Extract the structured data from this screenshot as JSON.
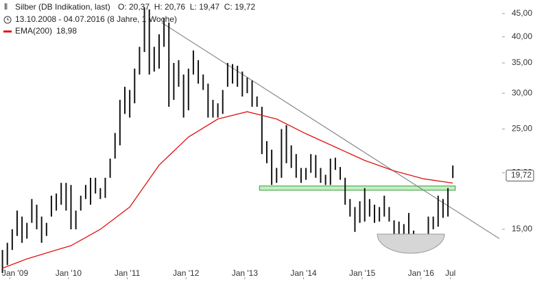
{
  "chart_data": {
    "type": "ohlc",
    "title": "Silber (DB Indikation, last)",
    "ohlc_text": "O: 20,37  H: 20,76  L: 19,47  C: 19,72",
    "range_text": "13.10.2008 - 04.07.2016 (8 Jahre, 1 Woche)",
    "ema_last": "18,98",
    "color": "#111111",
    "log_scale": true,
    "x": [
      "2008-11",
      "2008-12",
      "2009-01",
      "2009-02",
      "2009-03",
      "2009-04",
      "2009-05",
      "2009-06",
      "2009-07",
      "2009-08",
      "2009-09",
      "2009-10",
      "2009-11",
      "2009-12",
      "2010-01",
      "2010-02",
      "2010-03",
      "2010-04",
      "2010-05",
      "2010-06",
      "2010-07",
      "2010-08",
      "2010-09",
      "2010-10",
      "2010-11",
      "2010-12",
      "2011-01",
      "2011-02",
      "2011-03",
      "2011-04",
      "2011-05",
      "2011-06",
      "2011-07",
      "2011-08",
      "2011-09",
      "2011-10",
      "2011-11",
      "2011-12",
      "2012-01",
      "2012-02",
      "2012-03",
      "2012-04",
      "2012-05",
      "2012-06",
      "2012-07",
      "2012-08",
      "2012-09",
      "2012-10",
      "2012-11",
      "2012-12",
      "2013-01",
      "2013-02",
      "2013-03",
      "2013-04",
      "2013-05",
      "2013-06",
      "2013-07",
      "2013-08",
      "2013-09",
      "2013-10",
      "2013-11",
      "2013-12",
      "2014-01",
      "2014-02",
      "2014-03",
      "2014-04",
      "2014-05",
      "2014-06",
      "2014-07",
      "2014-08",
      "2014-09",
      "2014-10",
      "2014-11",
      "2014-12",
      "2015-01",
      "2015-02",
      "2015-03",
      "2015-04",
      "2015-05",
      "2015-06",
      "2015-07",
      "2015-08",
      "2015-09",
      "2015-10",
      "2015-11",
      "2015-12",
      "2016-01",
      "2016-02",
      "2016-03",
      "2016-04",
      "2016-05",
      "2016-06",
      "2016-07"
    ],
    "high": [
      13.5,
      14.0,
      15.0,
      16.5,
      16.0,
      15.5,
      17.5,
      17.0,
      16.0,
      15.5,
      17.8,
      18.0,
      19.0,
      19.0,
      18.8,
      16.5,
      17.8,
      18.8,
      19.5,
      19.5,
      18.5,
      19.5,
      21.5,
      24.5,
      29.0,
      31.0,
      30.5,
      34.0,
      38.0,
      46.5,
      46.0,
      38.0,
      40.5,
      44.0,
      43.0,
      35.0,
      35.5,
      33.0,
      34.0,
      37.3,
      35.5,
      33.0,
      31.5,
      29.0,
      28.5,
      30.5,
      35.0,
      34.8,
      34.5,
      33.5,
      32.5,
      32.0,
      29.5,
      28.0,
      23.5,
      22.5,
      20.5,
      25.0,
      25.5,
      23.0,
      22.0,
      20.5,
      20.5,
      22.0,
      21.9,
      20.5,
      19.8,
      21.5,
      21.6,
      20.6,
      19.5,
      17.5,
      16.8,
      17.3,
      18.5,
      17.5,
      17.0,
      16.8,
      17.8,
      16.8,
      15.7,
      15.6,
      15.4,
      16.3,
      14.9,
      14.4,
      14.5,
      16.0,
      16.0,
      17.8,
      17.5,
      18.5,
      20.76
    ],
    "low": [
      12.0,
      12.5,
      13.5,
      14.5,
      14.0,
      14.3,
      15.5,
      15.0,
      14.0,
      14.5,
      16.0,
      16.5,
      17.0,
      16.5,
      15.0,
      15.0,
      16.5,
      17.5,
      17.0,
      18.0,
      17.5,
      17.6,
      19.5,
      21.5,
      23.0,
      27.0,
      26.5,
      28.5,
      33.0,
      37.0,
      33.0,
      33.5,
      34.0,
      38.0,
      28.0,
      29.0,
      31.0,
      26.5,
      27.5,
      33.0,
      31.5,
      30.5,
      26.5,
      26.5,
      26.5,
      27.0,
      31.0,
      31.5,
      31.0,
      29.5,
      30.0,
      28.0,
      28.0,
      22.0,
      21.0,
      18.8,
      19.0,
      19.5,
      21.0,
      20.5,
      19.5,
      19.0,
      19.3,
      20.0,
      19.5,
      19.0,
      18.8,
      18.8,
      20.3,
      19.3,
      17.0,
      16.0,
      14.8,
      15.5,
      15.6,
      16.0,
      15.5,
      15.6,
      16.0,
      15.6,
      14.5,
      14.0,
      14.4,
      14.6,
      13.9,
      13.7,
      13.8,
      14.5,
      15.0,
      15.2,
      15.9,
      16.0,
      19.47
    ],
    "ema": {
      "name": "EMA(200)",
      "color": "#e01010",
      "x": [
        "2008-11",
        "2009-04",
        "2009-10",
        "2010-01",
        "2010-07",
        "2011-01",
        "2011-07",
        "2012-01",
        "2012-07",
        "2013-01",
        "2013-07",
        "2014-01",
        "2014-07",
        "2015-01",
        "2015-07",
        "2016-01",
        "2016-07"
      ],
      "values": [
        12.3,
        12.9,
        13.5,
        13.8,
        15.0,
        16.8,
        20.8,
        24.0,
        26.3,
        27.3,
        26.3,
        24.4,
        22.8,
        21.3,
        20.2,
        19.4,
        18.98
      ]
    },
    "trendline": {
      "color": "#888888",
      "x": [
        "2011-08",
        "2017-05"
      ],
      "values": [
        43.0,
        14.3
      ]
    },
    "support_band": {
      "color": "#9be39b",
      "x": [
        "2013-04",
        "2016-08"
      ],
      "values": [
        18.3,
        18.7
      ]
    },
    "last_price": {
      "value": 19.72,
      "label": "19,72"
    },
    "xlim": [
      "2008-11",
      "2017-05"
    ],
    "ylim": [
      11.75,
      47.4
    ],
    "xticks": [
      {
        "value": "2009-01",
        "label": "Jan '09"
      },
      {
        "value": "2010-01",
        "label": "Jan '10"
      },
      {
        "value": "2011-01",
        "label": "Jan '11"
      },
      {
        "value": "2012-01",
        "label": "Jan '12"
      },
      {
        "value": "2013-01",
        "label": "Jan '13"
      },
      {
        "value": "2014-01",
        "label": "Jan '14"
      },
      {
        "value": "2015-01",
        "label": "Jan '15"
      },
      {
        "value": "2016-01",
        "label": "Jan '16"
      },
      {
        "value": "2016-07",
        "label": "Jul"
      }
    ],
    "yticks": [
      {
        "value": 15,
        "label": "15,00"
      },
      {
        "value": 20,
        "label": "20,00"
      },
      {
        "value": 25,
        "label": "25,00"
      },
      {
        "value": 30,
        "label": "30,00"
      },
      {
        "value": 35,
        "label": "35,00"
      },
      {
        "value": 40,
        "label": "40,00"
      },
      {
        "value": 45,
        "label": "45,00"
      }
    ]
  }
}
